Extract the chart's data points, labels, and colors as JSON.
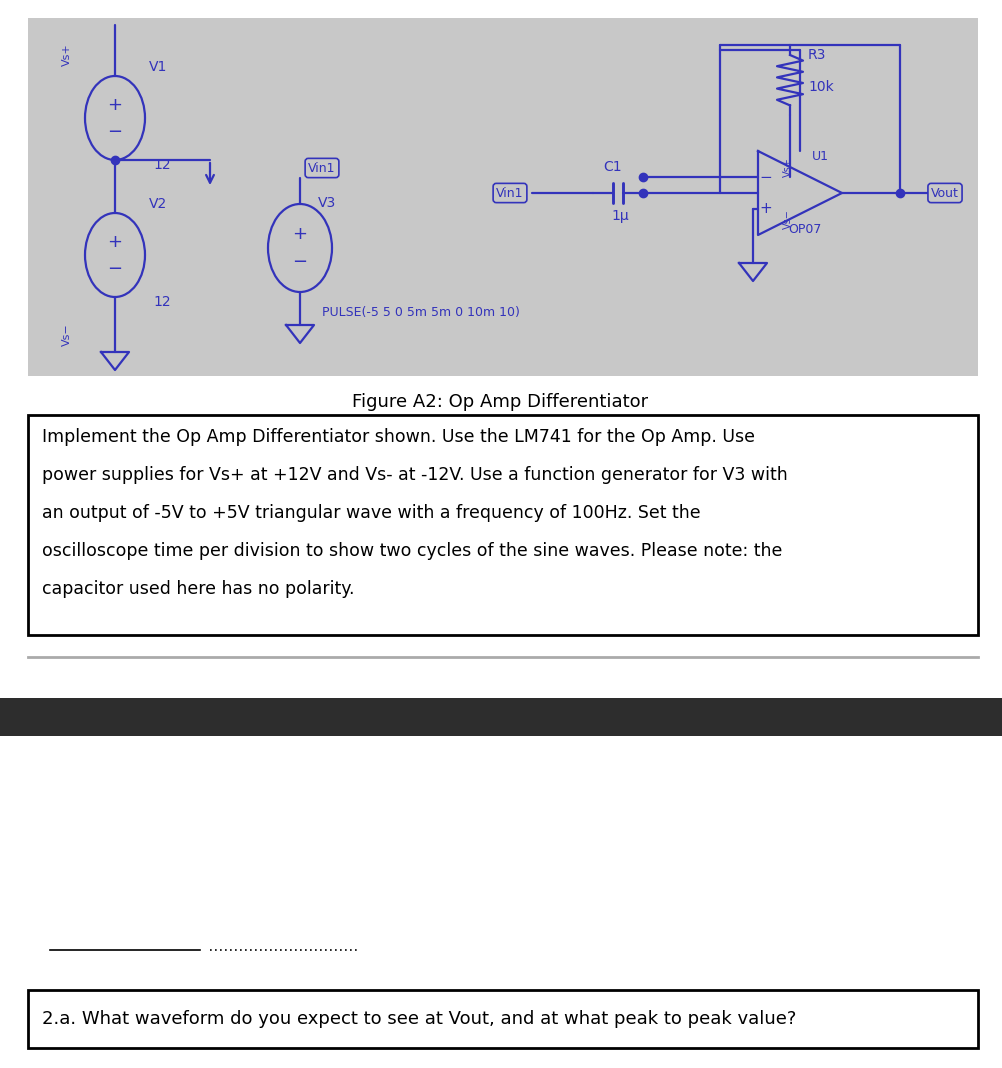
{
  "circuit_bg": "#c8c8c8",
  "cc": "#3333bb",
  "black": "#000000",
  "white": "#ffffff",
  "figure_caption": "Figure A2: Op Amp Differentiator",
  "desc_line1": "Implement the Op Amp Differentiator shown. Use the LM741 for the Op Amp. Use",
  "desc_line2": "power supplies for Vs+ at +12V and Vs- at -12V. Use a function generator for V3 with",
  "desc_line3": "an output of -5V to +5V triangular wave with a frequency of 100Hz. Set the",
  "desc_line4": "oscilloscope time per division to show two cycles of the sine waves. Please note: the",
  "desc_line5": "capacitor used here has no polarity.",
  "question": "2.a. What waveform do you expect to see at Vout, and at what peak to peak value?",
  "dark_band_color": "#2d2d2d",
  "sep_line_color": "#aaaaaa",
  "lw": 1.6
}
